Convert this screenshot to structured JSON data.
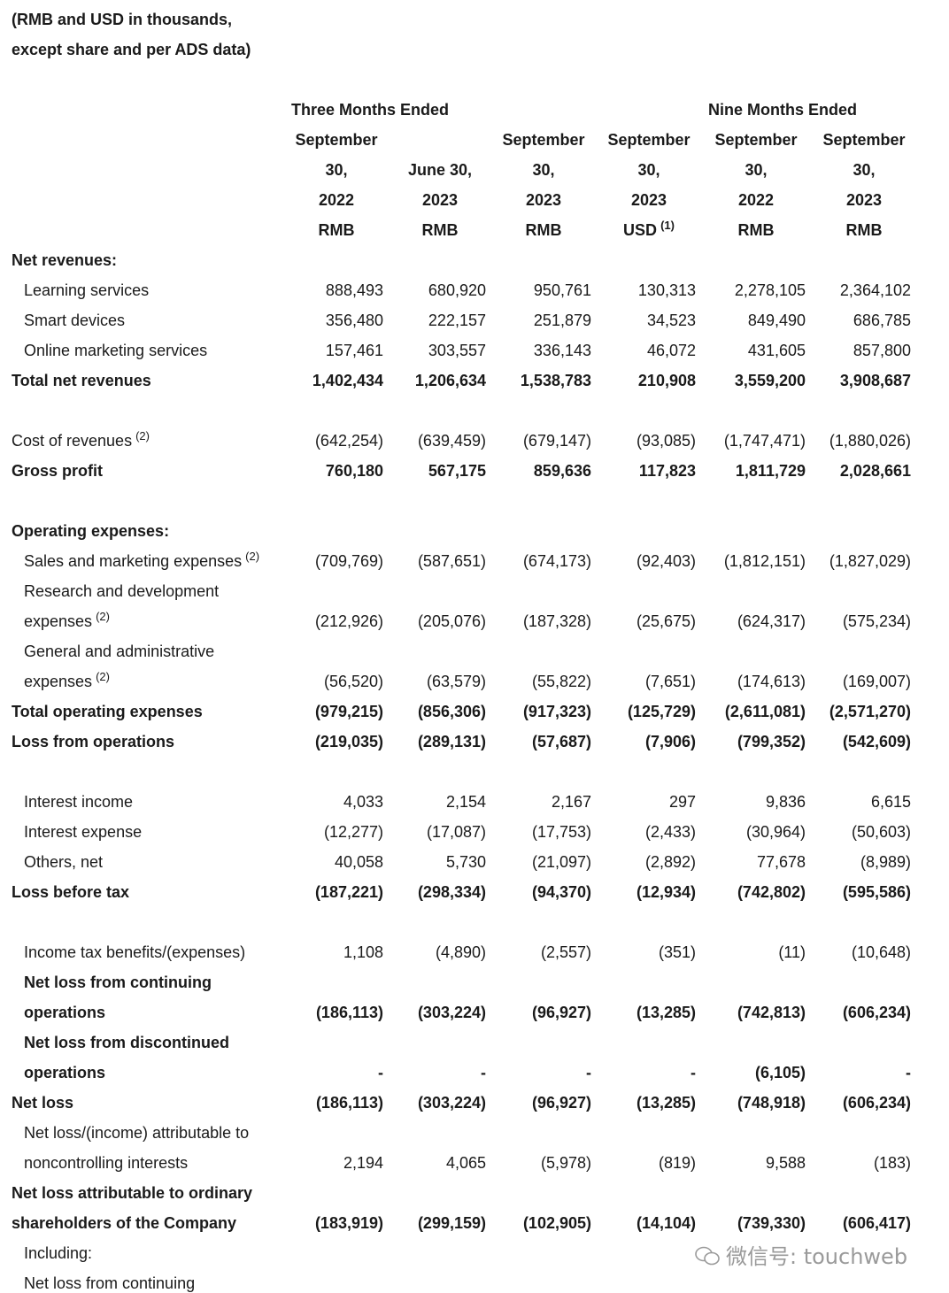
{
  "header": {
    "lines": [
      "(RMB and USD in thousands,",
      "except share and per ADS data)"
    ]
  },
  "column_groups": [
    "Three Months Ended",
    "Nine Months Ended"
  ],
  "columns": [
    {
      "lines": [
        "September",
        "30,",
        "2022",
        "RMB"
      ]
    },
    {
      "lines": [
        "June 30,",
        "2023",
        "RMB"
      ]
    },
    {
      "lines": [
        "September",
        "30,",
        "2023",
        "RMB"
      ]
    },
    {
      "lines": [
        "September",
        "30,",
        "2023",
        "USD"
      ],
      "note": "(1)"
    },
    {
      "lines": [
        "September",
        "30,",
        "2022",
        "RMB"
      ]
    },
    {
      "lines": [
        "September",
        "30,",
        "2023",
        "RMB"
      ]
    }
  ],
  "sections": [
    [
      {
        "label": [
          "Net revenues:"
        ],
        "bold": true
      },
      {
        "label": [
          "Learning services"
        ],
        "indent": true,
        "values": [
          "888,493",
          "680,920",
          "950,761",
          "130,313",
          "2,278,105",
          "2,364,102"
        ]
      },
      {
        "label": [
          "Smart devices"
        ],
        "indent": true,
        "values": [
          "356,480",
          "222,157",
          "251,879",
          "34,523",
          "849,490",
          "686,785"
        ]
      },
      {
        "label": [
          "Online marketing services"
        ],
        "indent": true,
        "values": [
          "157,461",
          "303,557",
          "336,143",
          "46,072",
          "431,605",
          "857,800"
        ]
      },
      {
        "label": [
          "Total net revenues"
        ],
        "bold": true,
        "values": [
          "1,402,434",
          "1,206,634",
          "1,538,783",
          "210,908",
          "3,559,200",
          "3,908,687"
        ]
      }
    ],
    [
      {
        "label": [
          "Cost of revenues"
        ],
        "note": "(2)",
        "values": [
          "(642,254)",
          "(639,459)",
          "(679,147)",
          "(93,085)",
          "(1,747,471)",
          "(1,880,026)"
        ]
      },
      {
        "label": [
          "Gross profit"
        ],
        "bold": true,
        "values": [
          "760,180",
          "567,175",
          "859,636",
          "117,823",
          "1,811,729",
          "2,028,661"
        ]
      }
    ],
    [
      {
        "label": [
          "Operating expenses:"
        ],
        "bold": true
      },
      {
        "label": [
          "Sales and marketing expenses"
        ],
        "note": "(2)",
        "indent": true,
        "values": [
          "(709,769)",
          "(587,651)",
          "(674,173)",
          "(92,403)",
          "(1,812,151)",
          "(1,827,029)"
        ]
      },
      {
        "label": [
          "Research and development",
          "expenses"
        ],
        "note": "(2)",
        "indent": true,
        "values": [
          "(212,926)",
          "(205,076)",
          "(187,328)",
          "(25,675)",
          "(624,317)",
          "(575,234)"
        ]
      },
      {
        "label": [
          "General and administrative",
          "expenses"
        ],
        "note": "(2)",
        "indent": true,
        "values": [
          "(56,520)",
          "(63,579)",
          "(55,822)",
          "(7,651)",
          "(174,613)",
          "(169,007)"
        ]
      },
      {
        "label": [
          "Total operating expenses"
        ],
        "bold": true,
        "values": [
          "(979,215)",
          "(856,306)",
          "(917,323)",
          "(125,729)",
          "(2,611,081)",
          "(2,571,270)"
        ]
      },
      {
        "label": [
          "Loss from operations"
        ],
        "bold": true,
        "values": [
          "(219,035)",
          "(289,131)",
          "(57,687)",
          "(7,906)",
          "(799,352)",
          "(542,609)"
        ]
      }
    ],
    [
      {
        "label": [
          "Interest income"
        ],
        "indent": true,
        "values": [
          "4,033",
          "2,154",
          "2,167",
          "297",
          "9,836",
          "6,615"
        ]
      },
      {
        "label": [
          "Interest expense"
        ],
        "indent": true,
        "values": [
          "(12,277)",
          "(17,087)",
          "(17,753)",
          "(2,433)",
          "(30,964)",
          "(50,603)"
        ]
      },
      {
        "label": [
          "Others, net"
        ],
        "indent": true,
        "values": [
          "40,058",
          "5,730",
          "(21,097)",
          "(2,892)",
          "77,678",
          "(8,989)"
        ]
      },
      {
        "label": [
          "Loss before tax"
        ],
        "bold": true,
        "values": [
          "(187,221)",
          "(298,334)",
          "(94,370)",
          "(12,934)",
          "(742,802)",
          "(595,586)"
        ]
      }
    ],
    [
      {
        "label": [
          "Income tax benefits/(expenses)"
        ],
        "indent": true,
        "values": [
          "1,108",
          "(4,890)",
          "(2,557)",
          "(351)",
          "(11)",
          "(10,648)"
        ]
      },
      {
        "label": [
          "Net loss from continuing",
          "operations"
        ],
        "bold": true,
        "indent": true,
        "values": [
          "(186,113)",
          "(303,224)",
          "(96,927)",
          "(13,285)",
          "(742,813)",
          "(606,234)"
        ]
      },
      {
        "label": [
          "Net loss from discontinued",
          "operations"
        ],
        "bold": true,
        "indent": true,
        "values": [
          "-",
          "-",
          "-",
          "-",
          "(6,105)",
          "-"
        ]
      },
      {
        "label": [
          "Net loss"
        ],
        "bold": true,
        "values": [
          "(186,113)",
          "(303,224)",
          "(96,927)",
          "(13,285)",
          "(748,918)",
          "(606,234)"
        ]
      },
      {
        "label": [
          "Net loss/(income) attributable to",
          "noncontrolling interests"
        ],
        "indent": true,
        "values": [
          "2,194",
          "4,065",
          "(5,978)",
          "(819)",
          "9,588",
          "(183)"
        ]
      },
      {
        "label": [
          "Net loss attributable to ordinary",
          "shareholders of the Company"
        ],
        "bold": true,
        "values": [
          "(183,919)",
          "(299,159)",
          "(102,905)",
          "(14,104)",
          "(739,330)",
          "(606,417)"
        ]
      },
      {
        "label": [
          "Including:"
        ],
        "indent": true
      },
      {
        "label": [
          "Net loss from continuing"
        ],
        "indent": true
      }
    ]
  ],
  "watermark": "微信号: touchweb"
}
